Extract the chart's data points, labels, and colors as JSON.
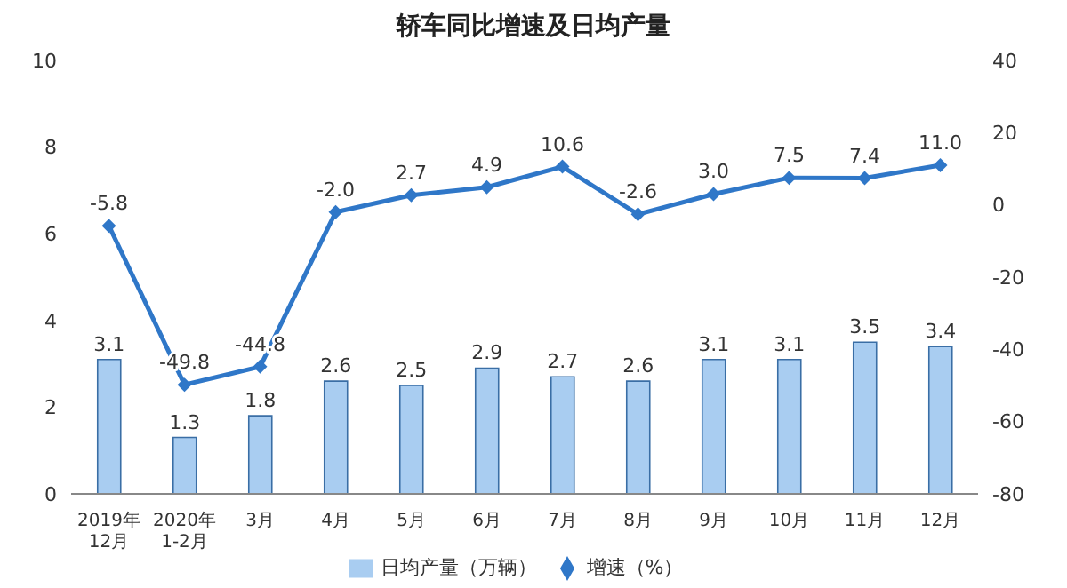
{
  "chart_data": {
    "type": "bar",
    "title": "轿车同比增速及日均产量",
    "categories": [
      "2019年\n12月",
      "2020年\n1-2月",
      "3月",
      "4月",
      "5月",
      "6月",
      "7月",
      "8月",
      "9月",
      "10月",
      "11月",
      "12月"
    ],
    "series": [
      {
        "name": "日均产量（万辆）",
        "color": "#a9cdf1",
        "values": [
          3.1,
          1.3,
          1.8,
          2.6,
          2.5,
          2.9,
          2.7,
          2.6,
          3.1,
          3.1,
          3.5,
          3.4
        ],
        "value_labels": [
          "3.1",
          "1.3",
          "1.8",
          "2.6",
          "2.5",
          "2.9",
          "2.7",
          "2.6",
          "3.1",
          "3.1",
          "3.5",
          "3.4"
        ]
      },
      {
        "name": "增速（%）",
        "type": "line",
        "axis": "y2",
        "color": "#2f77c8",
        "values": [
          -5.8,
          -49.8,
          -44.8,
          -2.0,
          2.7,
          4.9,
          10.6,
          -2.6,
          3.0,
          7.5,
          7.4,
          11.0
        ],
        "value_labels": [
          "-5.8",
          "-49.8",
          "-44.8",
          "-2.0",
          "2.7",
          "4.9",
          "10.6",
          "-2.6",
          "3.0",
          "7.5",
          "7.4",
          "11.0"
        ]
      }
    ],
    "ylim": [
      0,
      10
    ],
    "yticks": [
      0,
      2,
      4,
      6,
      8,
      10
    ],
    "y2lim": [
      -80,
      40
    ],
    "y2ticks": [
      -80,
      -60,
      -40,
      -20,
      0,
      20,
      40
    ],
    "grid": false,
    "legend": "bottom",
    "marker": "diamond",
    "line_style": "solid"
  }
}
